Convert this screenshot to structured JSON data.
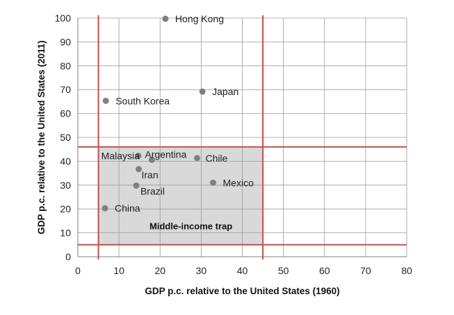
{
  "chart_data": {
    "type": "scatter",
    "xlabel": "GDP p.c. relative to the United States (1960)",
    "ylabel": "GDP p.c. relative to the United States (2011)",
    "xlim": [
      0,
      80
    ],
    "ylim": [
      0,
      100
    ],
    "xticks": [
      0,
      10,
      20,
      30,
      40,
      50,
      60,
      70,
      80
    ],
    "yticks": [
      0,
      10,
      20,
      30,
      40,
      50,
      60,
      70,
      80,
      90,
      100
    ],
    "grid": true,
    "marker_color": "#808080",
    "points": [
      {
        "label": "Hong Kong",
        "x": 21.3,
        "y": 99.7
      },
      {
        "label": "Japan",
        "x": 30.3,
        "y": 69.2
      },
      {
        "label": "South Korea",
        "x": 6.8,
        "y": 65.3
      },
      {
        "label": "Malaysia",
        "x": 14.7,
        "y": 42.3
      },
      {
        "label": "Argentina",
        "x": 18.0,
        "y": 40.6
      },
      {
        "label": "Chile",
        "x": 29.0,
        "y": 41.3
      },
      {
        "label": "Iran",
        "x": 14.8,
        "y": 36.7
      },
      {
        "label": "Mexico",
        "x": 32.9,
        "y": 31.0
      },
      {
        "label": "Brazil",
        "x": 14.2,
        "y": 29.8
      },
      {
        "label": "China",
        "x": 6.6,
        "y": 20.3
      }
    ],
    "region": {
      "label": "Middle-income trap",
      "x_range": [
        5,
        45
      ],
      "y_range": [
        5,
        46
      ],
      "fill_color": "#d9d9d9"
    },
    "reference_lines": {
      "color": "#c0504d",
      "vertical_x": [
        5,
        45
      ],
      "horizontal_y": [
        5,
        46
      ]
    }
  }
}
